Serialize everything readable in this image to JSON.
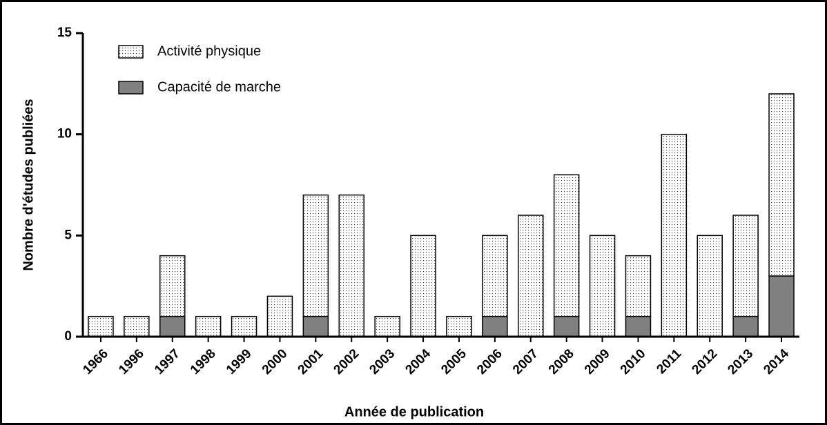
{
  "chart_data": {
    "type": "stacked_bar",
    "xlabel": "Année de publication",
    "ylabel": "Nombre d'études publiées",
    "categories": [
      "1966",
      "1996",
      "1997",
      "1998",
      "1999",
      "2000",
      "2001",
      "2002",
      "2003",
      "2004",
      "2005",
      "2006",
      "2007",
      "2008",
      "2009",
      "2010",
      "2011",
      "2012",
      "2013",
      "2014"
    ],
    "series": [
      {
        "name": "Activité physique",
        "color": "#ffffff",
        "pattern": "dotted",
        "values": [
          1,
          1,
          3,
          1,
          1,
          2,
          6,
          7,
          1,
          5,
          1,
          4,
          6,
          7,
          5,
          3,
          10,
          5,
          5,
          9
        ]
      },
      {
        "name": "Capacité de marche",
        "color": "#808080",
        "values": [
          0,
          0,
          1,
          0,
          0,
          0,
          1,
          0,
          0,
          0,
          0,
          1,
          0,
          1,
          0,
          1,
          0,
          0,
          1,
          3
        ]
      }
    ],
    "stack_bottom": "Capacité de marche",
    "ylim": [
      0,
      15
    ],
    "yticks": [
      0,
      5,
      10,
      15
    ],
    "legend": "upper left",
    "grid": false
  }
}
